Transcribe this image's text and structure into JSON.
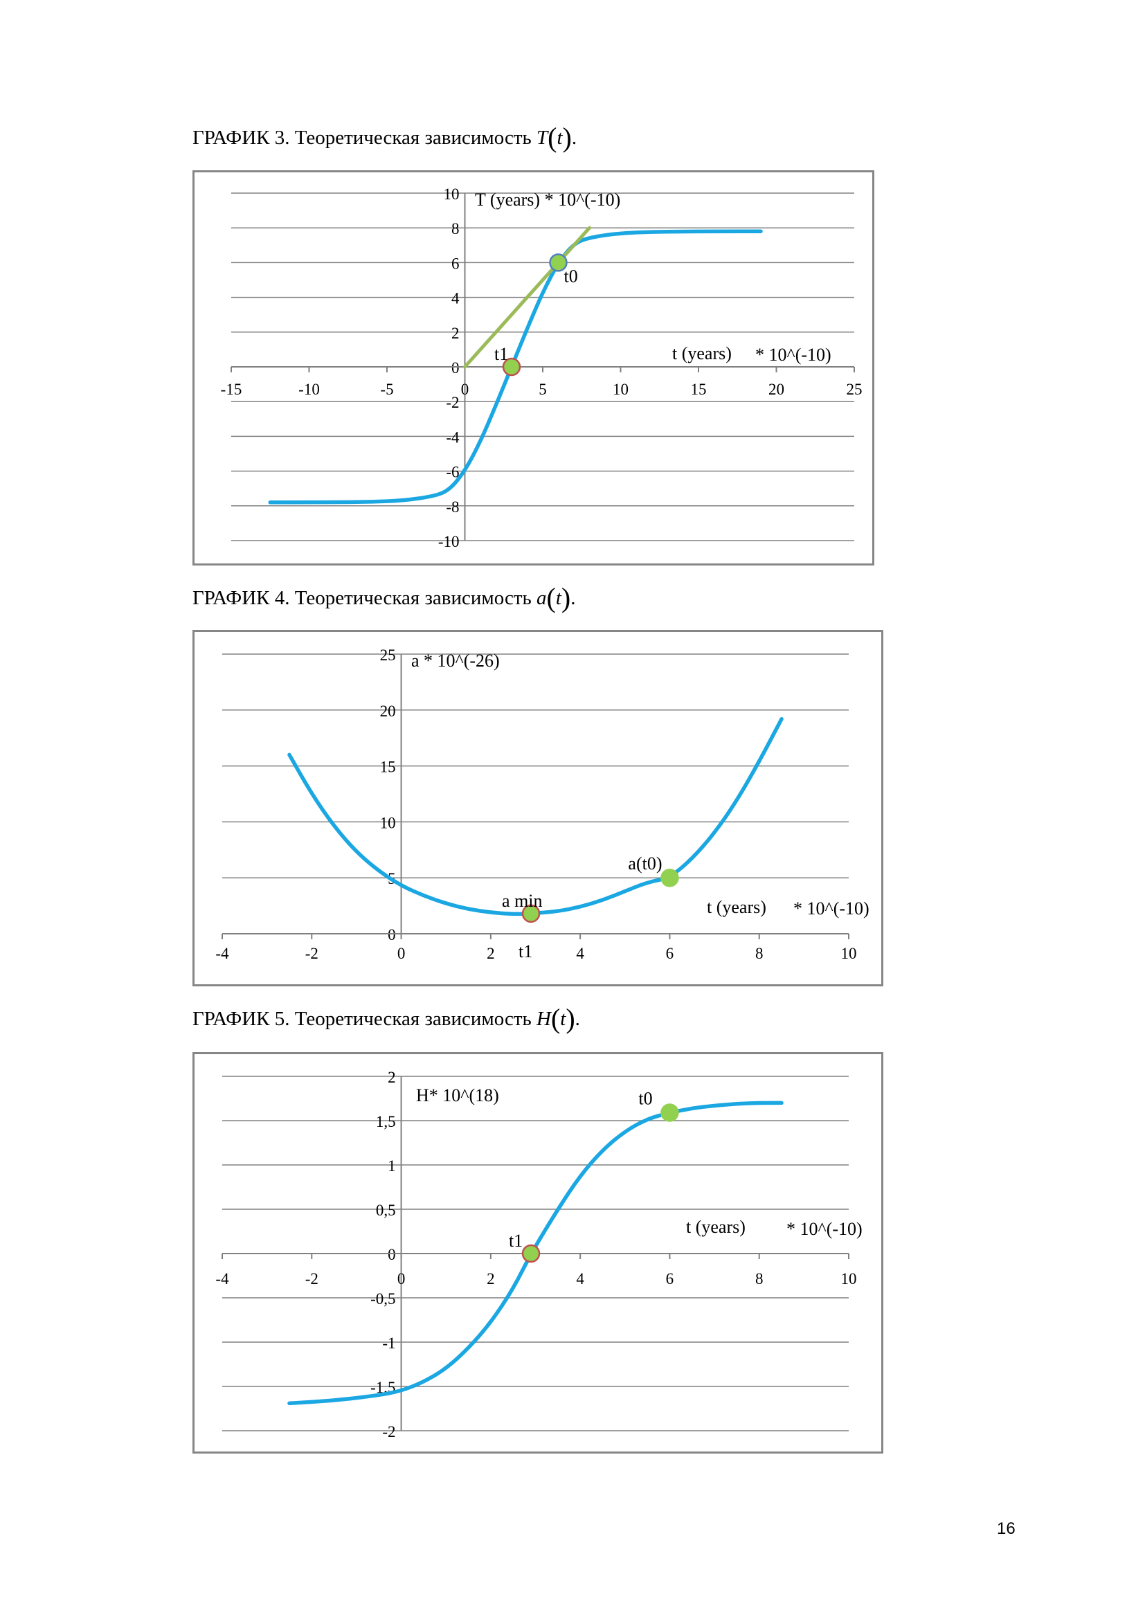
{
  "captions": [
    {
      "prefix": "ГРАФИК 3. Теоретическая зависимость",
      "var": "T",
      "arg": "t",
      "suffix": "."
    },
    {
      "prefix": "ГРАФИК 4. Теоретическая зависимость",
      "var": "a",
      "arg": "t",
      "suffix": "."
    },
    {
      "prefix": "ГРАФИК 5. Теоретическая зависимость",
      "var": "H",
      "arg": "t",
      "suffix": "."
    }
  ],
  "page_number": "16",
  "colors": {
    "curve": "#1aa7e2",
    "tangent": "#9bbb59",
    "point_fill": "#92d050",
    "point_red_stroke": "#c0504d",
    "point_blue_stroke": "#4f81bd",
    "grid": "#808080",
    "axis": "#808080",
    "frame": "#868686"
  },
  "chart_data": [
    {
      "type": "line",
      "xlim": [
        -15,
        25
      ],
      "ylim": [
        -10,
        10
      ],
      "x_ticks": [
        "-15",
        "-10",
        "-5",
        "0",
        "5",
        "10",
        "15",
        "20",
        "25"
      ],
      "y_ticks": [
        "10",
        "8",
        "6",
        "4",
        "2",
        "0",
        "-2",
        "-4",
        "-6",
        "-8",
        "-10"
      ],
      "ylabel": "T (years) * 10^(-10)",
      "xlabel_parts": [
        "t (years)",
        "* 10^(-10)"
      ],
      "grid": "horizontal",
      "series": [
        {
          "style": "curve",
          "x": [
            -12.5,
            -10,
            -8,
            -6,
            -4,
            -2,
            -1,
            0,
            1,
            2,
            3,
            4,
            5,
            6,
            7,
            8,
            10,
            12,
            14,
            16,
            19
          ],
          "y": [
            -7.8,
            -7.8,
            -7.79,
            -7.77,
            -7.7,
            -7.45,
            -7.1,
            -6.0,
            -4.3,
            -2.2,
            0.0,
            2.2,
            4.3,
            6.0,
            7.1,
            7.45,
            7.7,
            7.77,
            7.79,
            7.8,
            7.8
          ]
        },
        {
          "style": "tangent",
          "x": [
            0,
            8
          ],
          "y": [
            0,
            8
          ]
        }
      ],
      "points": [
        {
          "x": 3,
          "y": 0,
          "label": "t1",
          "stroke": "red"
        },
        {
          "x": 6,
          "y": 6,
          "label": "t0",
          "stroke": "blue"
        }
      ]
    },
    {
      "type": "line",
      "xlim": [
        -4,
        10
      ],
      "ylim": [
        0,
        25
      ],
      "x_ticks": [
        "-4",
        "-2",
        "0",
        "2",
        "4",
        "6",
        "8",
        "10"
      ],
      "y_ticks": [
        "25",
        "20",
        "15",
        "10",
        "5",
        "0"
      ],
      "ylabel": "a * 10^(-26)",
      "xlabel_parts": [
        "t (years)",
        "* 10^(-10)"
      ],
      "grid": "horizontal",
      "series": [
        {
          "style": "curve",
          "x": [
            -2.5,
            -2,
            -1.5,
            -1,
            -0.5,
            0,
            0.5,
            1,
            1.5,
            2,
            2.5,
            2.9,
            3.5,
            4,
            4.5,
            5,
            5.5,
            6,
            6.5,
            7,
            7.5,
            8,
            8.5
          ],
          "y": [
            16.0,
            12.5,
            9.6,
            7.3,
            5.6,
            4.3,
            3.4,
            2.7,
            2.2,
            1.9,
            1.75,
            1.8,
            2.0,
            2.4,
            3.0,
            3.8,
            4.6,
            5.0,
            6.7,
            9.0,
            11.9,
            15.4,
            19.2
          ]
        }
      ],
      "points": [
        {
          "x": 2.9,
          "y": 1.8,
          "label": "a min",
          "stroke": "red"
        },
        {
          "x": 6,
          "y": 5,
          "label": "a(t0)",
          "stroke": "green"
        }
      ],
      "annotations": [
        "t1"
      ]
    },
    {
      "type": "line",
      "xlim": [
        -4,
        10
      ],
      "ylim": [
        -2,
        2
      ],
      "x_ticks": [
        "-4",
        "-2",
        "0",
        "2",
        "4",
        "6",
        "8",
        "10"
      ],
      "y_ticks": [
        "2",
        "1,5",
        "1",
        "0,5",
        "0",
        "-0,5",
        "-1",
        "-1,5",
        "-2"
      ],
      "ylabel": "H* 10^(18)",
      "xlabel_parts": [
        "t (years)",
        "* 10^(-10)"
      ],
      "grid": "horizontal",
      "series": [
        {
          "style": "curve",
          "x": [
            -2.5,
            -1.5,
            -0.5,
            0,
            0.5,
            1,
            1.5,
            2,
            2.5,
            2.9,
            3.5,
            4,
            4.5,
            5,
            5.5,
            6,
            6.5,
            7,
            7.5,
            8,
            8.5
          ],
          "y": [
            -1.69,
            -1.66,
            -1.6,
            -1.55,
            -1.45,
            -1.3,
            -1.07,
            -0.78,
            -0.4,
            0.0,
            0.5,
            0.88,
            1.17,
            1.38,
            1.52,
            1.59,
            1.64,
            1.67,
            1.69,
            1.7,
            1.7
          ]
        }
      ],
      "points": [
        {
          "x": 2.9,
          "y": 0,
          "label": "t1",
          "stroke": "red"
        },
        {
          "x": 6,
          "y": 1.59,
          "label": "t0",
          "stroke": "green"
        }
      ]
    }
  ]
}
